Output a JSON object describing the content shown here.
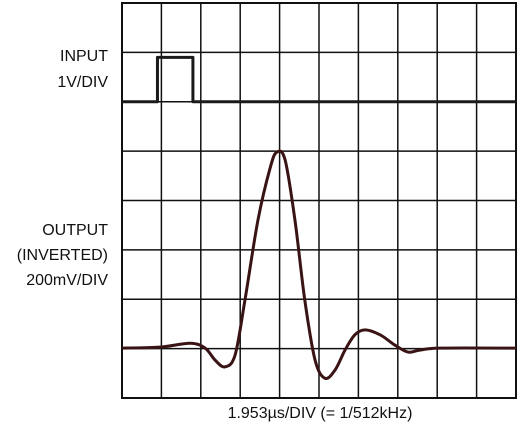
{
  "chart_data": {
    "type": "line",
    "xlabel": "1.953µs/DIV (= 1/512kHz)",
    "xlim": [
      0,
      10
    ],
    "ylim": [
      0,
      8
    ],
    "xticks": [
      0,
      1,
      2,
      3,
      4,
      5,
      6,
      7,
      8,
      9,
      10
    ],
    "yticks": [
      0,
      1,
      2,
      3,
      4,
      5,
      6,
      7,
      8
    ],
    "grid": true,
    "series": [
      {
        "name": [
          "INPUT",
          "1V/DIV"
        ],
        "color": "#1a1a1a",
        "x": [
          0,
          0.9,
          0.9,
          1.8,
          1.8,
          10
        ],
        "values": [
          6,
          6,
          6.9,
          6.9,
          6,
          6
        ]
      },
      {
        "name": [
          "OUTPUT",
          "(INVERTED)",
          "200mV/DIV"
        ],
        "color": "#3a1414",
        "x": [
          0,
          0.96,
          1.73,
          2.11,
          2.36,
          2.61,
          2.87,
          3.12,
          3.45,
          3.76,
          3.93,
          4.14,
          4.39,
          4.64,
          4.9,
          5.15,
          5.41,
          5.66,
          5.91,
          6.17,
          6.55,
          6.93,
          7.26,
          7.56,
          8.07,
          10
        ],
        "values": [
          1.01,
          1.03,
          1.11,
          1.01,
          0.77,
          0.63,
          0.87,
          1.98,
          3.6,
          4.66,
          4.98,
          4.82,
          3.6,
          1.98,
          0.77,
          0.4,
          0.57,
          0.97,
          1.28,
          1.38,
          1.28,
          1.07,
          0.93,
          0.97,
          1.01,
          1.01
        ]
      }
    ]
  }
}
